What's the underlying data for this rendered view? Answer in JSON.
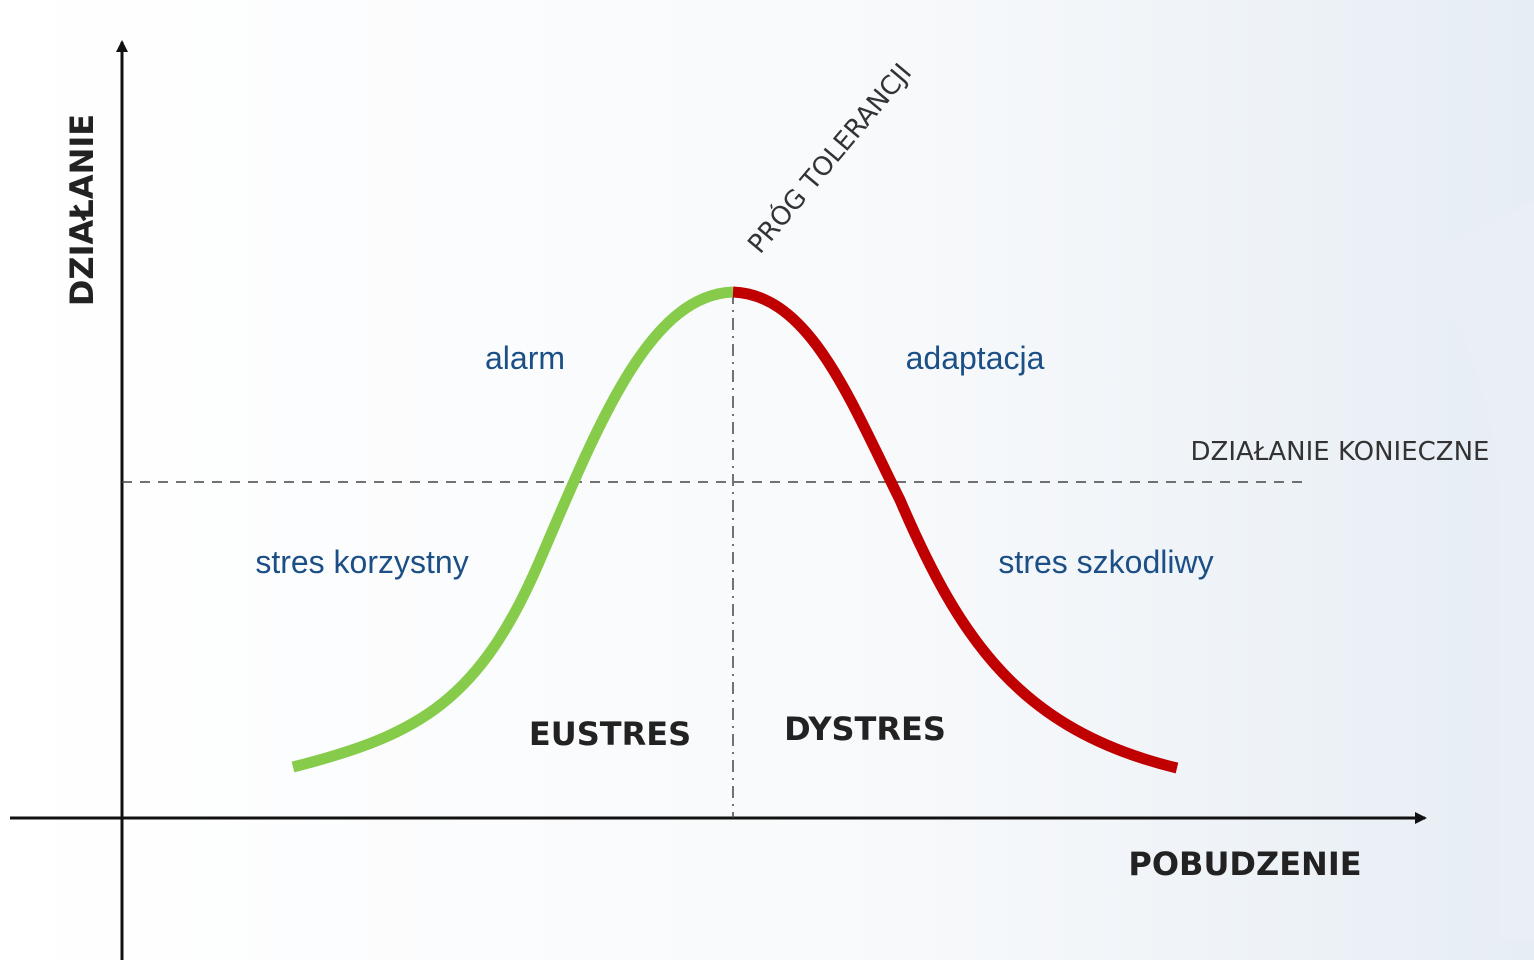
{
  "axes": {
    "y_label": "DZIAŁANIE",
    "x_label": "POBUDZENIE"
  },
  "threshold": {
    "peak_label": "PRÓG TOLERANCJI",
    "required_label": "DZIAŁANIE KONIECZNE"
  },
  "curve_labels": {
    "alarm": "alarm",
    "adaptation": "adaptacja",
    "positive": "stres korzystny",
    "harmful": "stres szkodliwy"
  },
  "regions": {
    "left": "EUSTRES",
    "right": "DYSTRES"
  }
}
